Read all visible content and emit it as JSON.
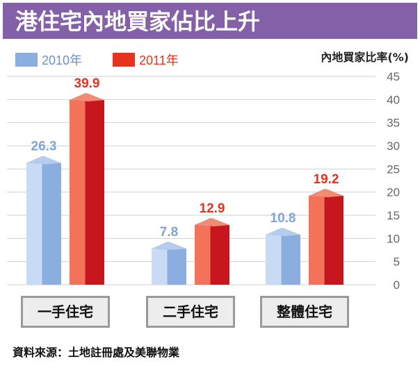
{
  "chart_data": {
    "type": "bar",
    "title": "港住宅內地買家佔比上升",
    "ylabel": "內地買家比率(%)",
    "categories": [
      "一手住宅",
      "二手住宅",
      "整體住宅"
    ],
    "series": [
      {
        "name": "2010年",
        "values": [
          26.3,
          7.8,
          10.8
        ],
        "color": "#8aaee0"
      },
      {
        "name": "2011年",
        "values": [
          39.9,
          12.9,
          19.2
        ],
        "color": "#e8321e"
      }
    ],
    "value_labels": [
      [
        "26.3",
        "7.8",
        "10.8"
      ],
      [
        "39.9",
        "12.9",
        "19.2"
      ]
    ],
    "ylim": [
      0,
      45
    ],
    "yticks": [
      "0",
      "5",
      "10",
      "15",
      "20",
      "25",
      "30",
      "35",
      "40",
      "45"
    ],
    "legend_position": "top-left",
    "grid": true,
    "source": "資料來源：土地註冊處及美聯物業",
    "colors": {
      "title_bg": "#8460a8",
      "grid": "#cfcfcf",
      "category_box": "#9a9a9a"
    }
  }
}
